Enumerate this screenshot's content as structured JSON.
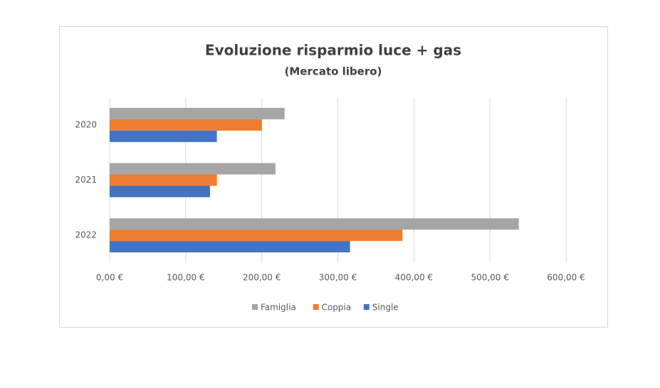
{
  "chart_data": {
    "type": "hbar",
    "title": "Evoluzione risparmio luce + gas",
    "subtitle": "(Mercato libero)",
    "categories": [
      "2020",
      "2021",
      "2022"
    ],
    "series": [
      {
        "name": "Famiglia",
        "color": "#a5a5a5",
        "values": [
          230,
          218,
          538
        ]
      },
      {
        "name": "Coppia",
        "color": "#ed7d31",
        "values": [
          200,
          141,
          385
        ]
      },
      {
        "name": "Single",
        "color": "#4472c4",
        "values": [
          141,
          132,
          316
        ]
      }
    ],
    "xlim": [
      0,
      600
    ],
    "xticks": [
      {
        "value": 0,
        "label": "0,00 €"
      },
      {
        "value": 100,
        "label": "100,00 €"
      },
      {
        "value": 200,
        "label": "200,00 €"
      },
      {
        "value": 300,
        "label": "300,00 €"
      },
      {
        "value": 400,
        "label": "400,00 €"
      },
      {
        "value": 500,
        "label": "500,00 €"
      },
      {
        "value": 600,
        "label": "600,00 €"
      }
    ],
    "grid": true,
    "legend": "bottom"
  }
}
